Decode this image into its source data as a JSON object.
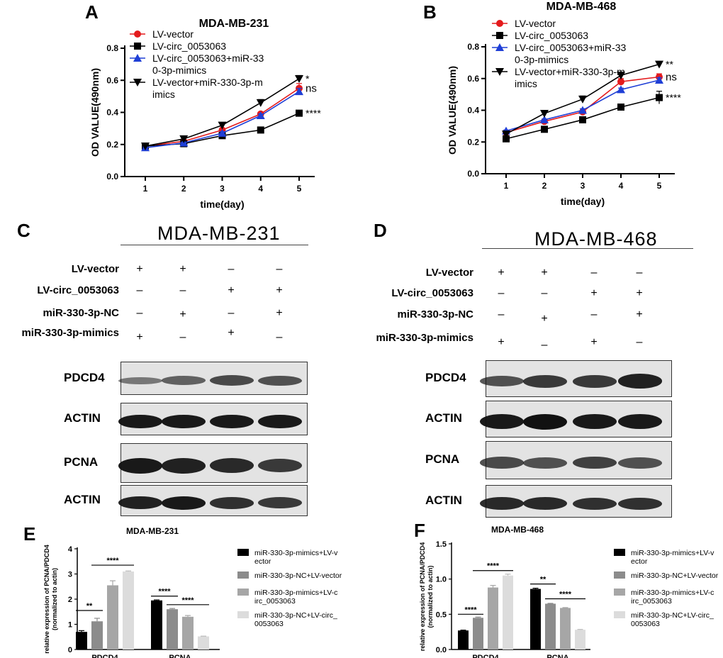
{
  "panel_letters": [
    "A",
    "B",
    "C",
    "D",
    "E",
    "F"
  ],
  "chart_data": [
    {
      "id": "A",
      "type": "line",
      "title": "MDA-MB-231",
      "xlabel": "time(day)",
      "ylabel": "OD VALUE(490nm)",
      "x": [
        1,
        2,
        3,
        4,
        5
      ],
      "xticks": [
        "1",
        "2",
        "3",
        "4",
        "5"
      ],
      "yticks": [
        "0.0",
        "0.2",
        "0.4",
        "0.6",
        "0.8"
      ],
      "ylim": [
        0,
        0.8
      ],
      "legend_position": "top-left",
      "series": [
        {
          "name": "LV-vector",
          "legend": [
            "LV-vector"
          ],
          "color": "#e41a1c",
          "marker": "circle",
          "values": [
            0.19,
            0.22,
            0.29,
            0.39,
            0.55
          ],
          "err": [
            0.01,
            0.01,
            0.01,
            0.01,
            0.03
          ],
          "annotation": "ns"
        },
        {
          "name": "LV-circ_0053063",
          "legend": [
            "LV-circ_0053063"
          ],
          "color": "#000000",
          "marker": "square",
          "values": [
            0.19,
            0.205,
            0.255,
            0.29,
            0.395
          ],
          "err": [
            0.005,
            0.005,
            0.005,
            0.005,
            0.005
          ],
          "annotation": "****"
        },
        {
          "name": "LV-circ_0053063+miR-330-3p-mimics",
          "legend": [
            "LV-circ_0053063+miR-33",
            "0-3p-mimics"
          ],
          "color": "#1f3fd6",
          "marker": "triangle-up",
          "values": [
            0.18,
            0.21,
            0.27,
            0.38,
            0.53
          ],
          "err": [
            0.005,
            0.005,
            0.01,
            0.01,
            0.02
          ],
          "annotation": ""
        },
        {
          "name": "LV-vector+miR-330-3p-mimics",
          "legend": [
            "LV-vector+miR-330-3p-m",
            "imics"
          ],
          "color": "#000000",
          "marker": "triangle-down",
          "values": [
            0.19,
            0.235,
            0.32,
            0.46,
            0.61
          ],
          "err": [
            0.005,
            0.01,
            0.01,
            0.02,
            0.02
          ],
          "annotation": "*"
        }
      ]
    },
    {
      "id": "B",
      "type": "line",
      "title": "MDA-MB-468",
      "xlabel": "time(day)",
      "ylabel": "OD VALUE(490nm)",
      "x": [
        1,
        2,
        3,
        4,
        5
      ],
      "xticks": [
        "1",
        "2",
        "3",
        "4",
        "5"
      ],
      "yticks": [
        "0.0",
        "0.2",
        "0.4",
        "0.6",
        "0.8"
      ],
      "ylim": [
        0,
        0.8
      ],
      "legend_position": "top-left",
      "series": [
        {
          "name": "LV-vector",
          "legend": [
            "LV-vector"
          ],
          "color": "#e41a1c",
          "marker": "circle",
          "values": [
            0.26,
            0.33,
            0.39,
            0.58,
            0.61
          ],
          "err": [
            0.01,
            0.01,
            0.01,
            0.02,
            0.02
          ],
          "annotation": "ns"
        },
        {
          "name": "LV-circ_0053063",
          "legend": [
            "LV-circ_0053063"
          ],
          "color": "#000000",
          "marker": "square",
          "values": [
            0.22,
            0.28,
            0.34,
            0.42,
            0.48
          ],
          "err": [
            0.005,
            0.005,
            0.01,
            0.015,
            0.04
          ],
          "annotation": "****"
        },
        {
          "name": "LV-circ_0053063+miR-330-3p-mimics",
          "legend": [
            "LV-circ_0053063+miR-33",
            "0-3p-mimics"
          ],
          "color": "#1f3fd6",
          "marker": "triangle-up",
          "values": [
            0.27,
            0.34,
            0.4,
            0.53,
            0.59
          ],
          "err": [
            0.005,
            0.005,
            0.01,
            0.01,
            0.015
          ],
          "annotation": ""
        },
        {
          "name": "LV-vector+miR-330-3p-mimics",
          "legend": [
            "LV-vector+miR-330-3p-m",
            "imics"
          ],
          "color": "#000000",
          "marker": "triangle-down",
          "values": [
            0.25,
            0.38,
            0.47,
            0.62,
            0.69
          ],
          "err": [
            0.005,
            0.005,
            0.02,
            0.02,
            0.01
          ],
          "annotation": "**"
        }
      ]
    },
    {
      "id": "E",
      "type": "bar",
      "title": "MDA-MB-231",
      "ylabel_lines": [
        "relative expression of PCNA/PDCD4",
        "(normalized to actin)"
      ],
      "categories": [
        "PDCD4",
        "PCNA"
      ],
      "yticks": [
        "0",
        "1",
        "2",
        "3",
        "4"
      ],
      "ylim": [
        0,
        4
      ],
      "legend_position": "right",
      "series": [
        {
          "name": "miR-330-3p-mimics+LV-vector",
          "legend": [
            "miR-330-3p-mimics+LV-v",
            "ector"
          ],
          "color": "#000000",
          "values": [
            0.7,
            1.95
          ],
          "err": [
            0.05,
            0.02
          ]
        },
        {
          "name": "miR-330-3p-NC+LV-vector",
          "legend": [
            "miR-330-3p-NC+LV-vector"
          ],
          "color": "#8c8c8c",
          "values": [
            1.12,
            1.6
          ],
          "err": [
            0.12,
            0.03
          ]
        },
        {
          "name": "miR-330-3p-mimics+LV-circ_0053063",
          "legend": [
            "miR-330-3p-mimics+LV-c",
            "irc_0053063"
          ],
          "color": "#a6a6a6",
          "values": [
            2.55,
            1.3
          ],
          "err": [
            0.18,
            0.05
          ]
        },
        {
          "name": "miR-330-3p-NC+LV-circ_0053063",
          "legend": [
            "miR-330-3p-NC+LV-circ_",
            "0053063"
          ],
          "color": "#dcdcdc",
          "values": [
            3.1,
            0.52
          ],
          "err": [
            0.02,
            0.01
          ]
        }
      ],
      "significance": [
        {
          "group": 0,
          "from": 0,
          "to": 1,
          "label": "**",
          "y": 1.55
        },
        {
          "group": 0,
          "from": 1,
          "to": 3,
          "label": "****",
          "y": 3.35
        },
        {
          "group": 1,
          "from": 0,
          "to": 1,
          "label": "****",
          "y": 2.12
        },
        {
          "group": 1,
          "from": 1,
          "to": 3,
          "label": "****",
          "y": 1.78
        }
      ]
    },
    {
      "id": "F",
      "type": "bar",
      "title": "MDA-MB-468",
      "ylabel_lines": [
        "relative expression of PCNA/PDCD4",
        "(normalized to actin)"
      ],
      "categories": [
        "PDCD4",
        "PCNA"
      ],
      "yticks": [
        "0.0",
        "0.5",
        "1.0",
        "1.5"
      ],
      "ylim": [
        0,
        1.5
      ],
      "legend_position": "right",
      "series": [
        {
          "name": "miR-330-3p-mimics+LV-vector",
          "legend": [
            "miR-330-3p-mimics+LV-v",
            "ector"
          ],
          "color": "#000000",
          "values": [
            0.27,
            0.86
          ],
          "err": [
            0.005,
            0.01
          ]
        },
        {
          "name": "miR-330-3p-NC+LV-vector",
          "legend": [
            "miR-330-3p-NC+LV-vector"
          ],
          "color": "#8c8c8c",
          "values": [
            0.45,
            0.65
          ],
          "err": [
            0.01,
            0.005
          ]
        },
        {
          "name": "miR-330-3p-mimics+LV-circ_0053063",
          "legend": [
            "miR-330-3p-mimics+LV-c",
            "irc_0053063"
          ],
          "color": "#a6a6a6",
          "values": [
            0.88,
            0.59
          ],
          "err": [
            0.03,
            0.005
          ]
        },
        {
          "name": "miR-330-3p-NC+LV-circ_0053063",
          "legend": [
            "miR-330-3p-NC+LV-circ_",
            "0053063"
          ],
          "color": "#dcdcdc",
          "values": [
            1.05,
            0.28
          ],
          "err": [
            0.02,
            0.005
          ]
        }
      ],
      "significance": [
        {
          "group": 0,
          "from": 0,
          "to": 1,
          "label": "****",
          "y": 0.5
        },
        {
          "group": 0,
          "from": 1,
          "to": 3,
          "label": "****",
          "y": 1.12
        },
        {
          "group": 1,
          "from": 0,
          "to": 1,
          "label": "**",
          "y": 0.93
        },
        {
          "group": 1,
          "from": 1,
          "to": 3,
          "label": "****",
          "y": 0.72
        }
      ]
    }
  ],
  "western_blots": [
    {
      "id": "C",
      "title": "MDA-MB-231",
      "conditions": [
        {
          "label": "LV-vector",
          "signs": [
            "+",
            "+",
            "–",
            "–"
          ]
        },
        {
          "label": "LV-circ_0053063",
          "signs": [
            "–",
            "–",
            "+",
            "+"
          ]
        },
        {
          "label": "miR-330-3p-NC",
          "signs": [
            "–",
            "+",
            "–",
            "+"
          ]
        },
        {
          "label": "miR-330-3p-mimics",
          "signs": [
            "+",
            "–",
            "+",
            "–"
          ]
        }
      ],
      "blots": [
        {
          "label": "PDCD4",
          "intensity": [
            0.35,
            0.5,
            0.65,
            0.6
          ]
        },
        {
          "label": "ACTIN",
          "intensity": [
            0.95,
            0.95,
            0.95,
            0.95
          ]
        },
        {
          "label": "PCNA",
          "intensity": [
            0.95,
            0.9,
            0.85,
            0.75
          ]
        },
        {
          "label": "ACTIN",
          "intensity": [
            0.9,
            0.95,
            0.8,
            0.75
          ]
        }
      ]
    },
    {
      "id": "D",
      "title": "MDA-MB-468",
      "conditions": [
        {
          "label": "LV-vector",
          "signs": [
            "+",
            "+",
            "–",
            "–"
          ]
        },
        {
          "label": "LV-circ_0053063",
          "signs": [
            "–",
            "–",
            "+",
            "+"
          ]
        },
        {
          "label": "miR-330-3p-NC",
          "signs": [
            "–",
            "+",
            "–",
            "+"
          ]
        },
        {
          "label": "miR-330-3p-mimics",
          "signs": [
            "+",
            "–",
            "+",
            "–"
          ]
        }
      ],
      "blots": [
        {
          "label": "PDCD4",
          "intensity": [
            0.6,
            0.75,
            0.75,
            0.9
          ]
        },
        {
          "label": "ACTIN",
          "intensity": [
            0.95,
            1.0,
            0.95,
            0.95
          ]
        },
        {
          "label": "PCNA",
          "intensity": [
            0.65,
            0.6,
            0.7,
            0.6
          ]
        },
        {
          "label": "ACTIN",
          "intensity": [
            0.85,
            0.85,
            0.8,
            0.8
          ]
        }
      ]
    }
  ]
}
